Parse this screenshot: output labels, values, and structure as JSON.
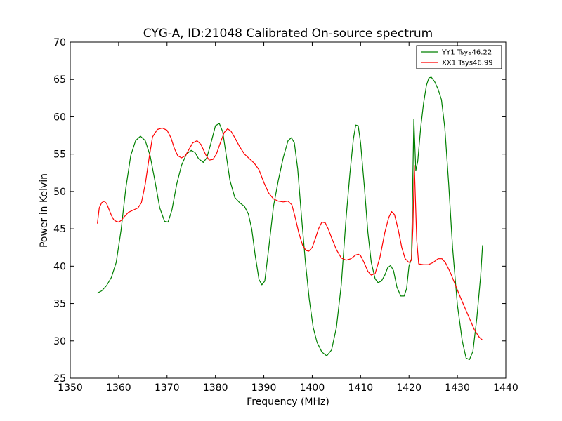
{
  "chart_data": {
    "type": "line",
    "title": "CYG-A, ID:21048 Calibrated On-source spectrum",
    "xlabel": "Frequency (MHz)",
    "ylabel": "Power in Kelvin",
    "xlim": [
      1350,
      1440
    ],
    "ylim": [
      25,
      70
    ],
    "xticks": [
      1350,
      1360,
      1370,
      1380,
      1390,
      1400,
      1410,
      1420,
      1430,
      1440
    ],
    "yticks": [
      25,
      30,
      35,
      40,
      45,
      50,
      55,
      60,
      65,
      70
    ],
    "grid": false,
    "legend_position": "top-right",
    "series": [
      {
        "name": "YY1 Tsys46.22",
        "color": "#008000",
        "x": [
          1355.6,
          1356.5,
          1357.5,
          1358.5,
          1359.5,
          1360.5,
          1361.5,
          1362.5,
          1363.5,
          1364.5,
          1365.5,
          1366.5,
          1367.5,
          1368.5,
          1369.5,
          1370.2,
          1371,
          1372,
          1373,
          1374,
          1375,
          1375.8,
          1376.5,
          1377.5,
          1378.2,
          1379,
          1380,
          1380.8,
          1381.5,
          1382.2,
          1383,
          1384,
          1385,
          1386,
          1386.8,
          1387.5,
          1388.2,
          1389,
          1389.6,
          1390.2,
          1391,
          1392,
          1393,
          1394,
          1395,
          1395.7,
          1396.3,
          1397,
          1397.8,
          1398.6,
          1399.4,
          1400.2,
          1401,
          1402,
          1403,
          1404,
          1405,
          1406,
          1407,
          1407.8,
          1408.5,
          1409,
          1409.5,
          1410,
          1410.8,
          1411.5,
          1412.2,
          1413,
          1413.6,
          1414.3,
          1415,
          1415.6,
          1416.2,
          1416.8,
          1417.5,
          1418.3,
          1419,
          1419.5,
          1420,
          1420.5,
          1421,
          1421.4,
          1421.8,
          1422.4,
          1423,
          1423.6,
          1424.1,
          1424.6,
          1425.3,
          1426,
          1426.7,
          1427.4,
          1428.2,
          1429,
          1430,
          1431,
          1431.8,
          1432.5,
          1433.2,
          1434,
          1434.8,
          1435.2
        ],
        "y": [
          36.4,
          36.7,
          37.4,
          38.5,
          40.5,
          44.8,
          50.5,
          54.8,
          56.8,
          57.4,
          56.8,
          54.8,
          51.4,
          47.8,
          46,
          45.9,
          47.5,
          51,
          53.5,
          55,
          55.5,
          55.2,
          54.4,
          53.9,
          54.5,
          56.3,
          58.8,
          59.1,
          58,
          55,
          51.5,
          49.2,
          48.5,
          48,
          47,
          45,
          41.5,
          38.2,
          37.5,
          38,
          42.3,
          48,
          51.5,
          54.5,
          56.8,
          57.2,
          56.5,
          53,
          46.5,
          40.5,
          35.5,
          31.8,
          29.8,
          28.5,
          28,
          28.8,
          31.8,
          37.5,
          46.5,
          52.5,
          57,
          58.9,
          58.8,
          56.5,
          50.5,
          44.5,
          40.5,
          38.3,
          37.8,
          38,
          38.8,
          39.8,
          40.1,
          39.4,
          37.2,
          36,
          36,
          37,
          40,
          41,
          59.7,
          52.8,
          54,
          58.5,
          61.8,
          64.2,
          65.2,
          65.3,
          64.7,
          63.7,
          62.3,
          58.5,
          51,
          42.5,
          34.8,
          30,
          27.7,
          27.5,
          28.6,
          33,
          38.7,
          42.8
        ]
      },
      {
        "name": "XX1 Tsys46.99",
        "color": "#ff0000",
        "x": [
          1355.6,
          1356,
          1356.5,
          1357,
          1357.5,
          1358,
          1358.5,
          1359,
          1359.5,
          1360,
          1360.5,
          1361,
          1362,
          1363,
          1364,
          1364.7,
          1365.5,
          1366.3,
          1367,
          1368,
          1369,
          1370,
          1370.8,
          1371.5,
          1372.2,
          1373,
          1373.8,
          1374.5,
          1375.3,
          1376.2,
          1377,
          1378,
          1378.7,
          1379.5,
          1380.2,
          1381,
          1381.8,
          1382.5,
          1383.2,
          1384,
          1385,
          1386,
          1387,
          1388,
          1389,
          1390,
          1391,
          1392,
          1393,
          1394,
          1395,
          1395.8,
          1396.5,
          1397.2,
          1398,
          1398.7,
          1399.3,
          1400,
          1400.7,
          1401.3,
          1402,
          1402.7,
          1403.3,
          1404,
          1405,
          1406,
          1407,
          1408,
          1409,
          1409.5,
          1410,
          1410.7,
          1411.5,
          1412.2,
          1413,
          1414,
          1415,
          1415.8,
          1416.4,
          1417,
          1417.8,
          1418.5,
          1419.2,
          1420,
          1420.5,
          1420.8,
          1421.1,
          1421.6,
          1422,
          1423,
          1424,
          1425,
          1426,
          1426.8,
          1427.5,
          1428.5,
          1429.5,
          1430.5,
          1431.5,
          1432.5,
          1433.5,
          1434.5,
          1435.2
        ],
        "y": [
          45.7,
          47.8,
          48.5,
          48.7,
          48.4,
          47.6,
          46.8,
          46.2,
          46,
          45.9,
          46.1,
          46.5,
          47.2,
          47.5,
          47.8,
          48.5,
          51,
          54.5,
          57.3,
          58.3,
          58.5,
          58.2,
          57.2,
          55.8,
          54.8,
          54.5,
          54.8,
          55.6,
          56.5,
          56.8,
          56.3,
          54.9,
          54.2,
          54.3,
          55,
          56.5,
          57.9,
          58.4,
          58.1,
          57.2,
          56,
          55,
          54.4,
          53.8,
          52.9,
          51.2,
          49.8,
          49,
          48.7,
          48.6,
          48.7,
          48.2,
          46.5,
          44.5,
          42.8,
          42.1,
          42,
          42.5,
          43.8,
          45,
          45.9,
          45.8,
          45,
          43.8,
          42.2,
          41.1,
          40.8,
          41,
          41.5,
          41.6,
          41.4,
          40.5,
          39.3,
          38.8,
          39,
          41.2,
          44.5,
          46.5,
          47.3,
          46.9,
          44.8,
          42.5,
          41,
          40.5,
          40.8,
          45,
          53.5,
          43.5,
          40.3,
          40.2,
          40.2,
          40.5,
          41,
          41,
          40.5,
          39.2,
          37.6,
          36,
          34.5,
          33,
          31.5,
          30.5,
          30.1
        ]
      }
    ]
  }
}
